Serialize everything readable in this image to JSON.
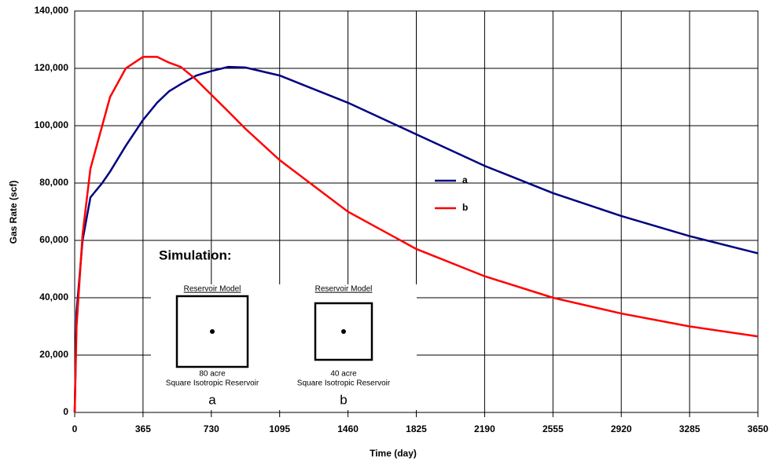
{
  "chart_data": {
    "type": "line",
    "xlabel": "Time (day)",
    "ylabel": "Gas Rate (scf)",
    "x": [
      0,
      10,
      42,
      84,
      147,
      189,
      273,
      365,
      440,
      504,
      567,
      650,
      727,
      820,
      911,
      1095,
      1460,
      1825,
      2190,
      2555,
      2920,
      3285,
      3650
    ],
    "series": [
      {
        "name": "a",
        "color": "#000080",
        "values": [
          0,
          35000,
          60000,
          75000,
          80000,
          84000,
          93000,
          102000,
          108000,
          112000,
          114500,
          117500,
          119000,
          120500,
          120300,
          117500,
          108000,
          97000,
          86000,
          76500,
          68500,
          61500,
          55500
        ]
      },
      {
        "name": "b",
        "color": "#ff0000",
        "values": [
          0,
          30000,
          62000,
          85000,
          100000,
          110000,
          120000,
          124000,
          124000,
          122000,
          120500,
          116000,
          111000,
          105000,
          99000,
          88000,
          70000,
          57000,
          47500,
          40000,
          34500,
          30000,
          26500
        ]
      }
    ],
    "xlim": [
      0,
      3650
    ],
    "xticks": [
      0,
      365,
      730,
      1095,
      1460,
      1825,
      2190,
      2555,
      2920,
      3285,
      3650
    ],
    "ylim": [
      0,
      140000
    ],
    "yticks": [
      {
        "value": 0,
        "label": "0"
      },
      {
        "value": 20000,
        "label": "20,000"
      },
      {
        "value": 40000,
        "label": "40,000"
      },
      {
        "value": 60000,
        "label": "60,000"
      },
      {
        "value": 80000,
        "label": "80,000"
      },
      {
        "value": 100000,
        "label": "100,000"
      },
      {
        "value": 120000,
        "label": "120,000"
      },
      {
        "value": 140000,
        "label": "140,000"
      }
    ],
    "grid": true,
    "annotation": {
      "title": "Simulation:",
      "models": [
        {
          "header": "Reservoir  Model",
          "size": "80 acre",
          "desc": "Square Isotropic Reservoir",
          "label": "a"
        },
        {
          "header": "Reservoir  Model",
          "size": "40 acre",
          "desc": "Square Isotropic Reservoir",
          "label": "b"
        }
      ]
    }
  }
}
